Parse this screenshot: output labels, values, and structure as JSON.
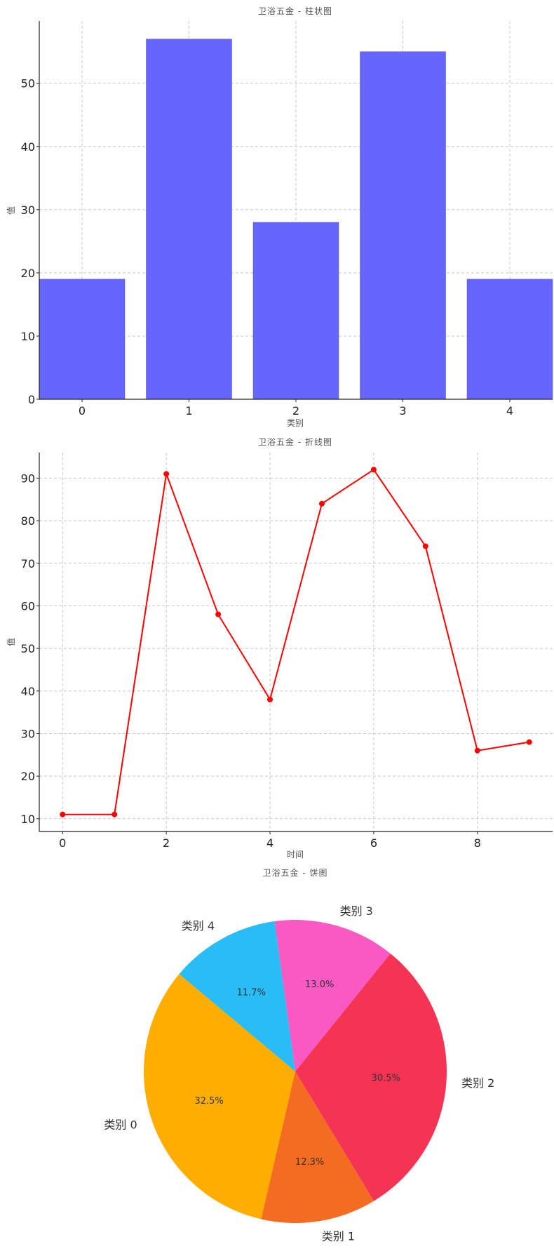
{
  "chart_data": [
    {
      "type": "bar",
      "title": "卫浴五金 - 柱状图",
      "xlabel": "类别",
      "ylabel": "值",
      "categories": [
        "0",
        "1",
        "2",
        "3",
        "4"
      ],
      "values": [
        19,
        57,
        28,
        55,
        19
      ],
      "ylim": [
        0,
        59.85
      ],
      "yticks": [
        0,
        10,
        20,
        30,
        40,
        50
      ],
      "grid": true,
      "colors": {
        "bar": "#6666ff"
      }
    },
    {
      "type": "line",
      "title": "卫浴五金 - 折线图",
      "xlabel": "时间",
      "ylabel": "值",
      "x": [
        0,
        1,
        2,
        3,
        4,
        5,
        6,
        7,
        8,
        9
      ],
      "values": [
        11,
        11,
        91,
        58,
        38,
        84,
        92,
        74,
        26,
        28
      ],
      "xlim": [
        -0.45,
        9.45
      ],
      "ylim": [
        7,
        96
      ],
      "xticks": [
        0,
        2,
        4,
        6,
        8
      ],
      "yticks": [
        10,
        20,
        30,
        40,
        50,
        60,
        70,
        80,
        90
      ],
      "grid": true,
      "colors": {
        "line": "#ff0000"
      }
    },
    {
      "type": "pie",
      "title": "卫浴五金 - 饼图",
      "labels": [
        "类别 0",
        "类别 1",
        "类别 2",
        "类别 3",
        "类别 4"
      ],
      "percent_labels": [
        "32.5%",
        "12.3%",
        "30.5%",
        "13.0%",
        "11.7%"
      ],
      "values": [
        32.5,
        12.3,
        30.5,
        13.0,
        11.7
      ],
      "colors": [
        "#ffae00",
        "#f46b22",
        "#f53355",
        "#f859c2",
        "#29bdf8"
      ]
    }
  ]
}
